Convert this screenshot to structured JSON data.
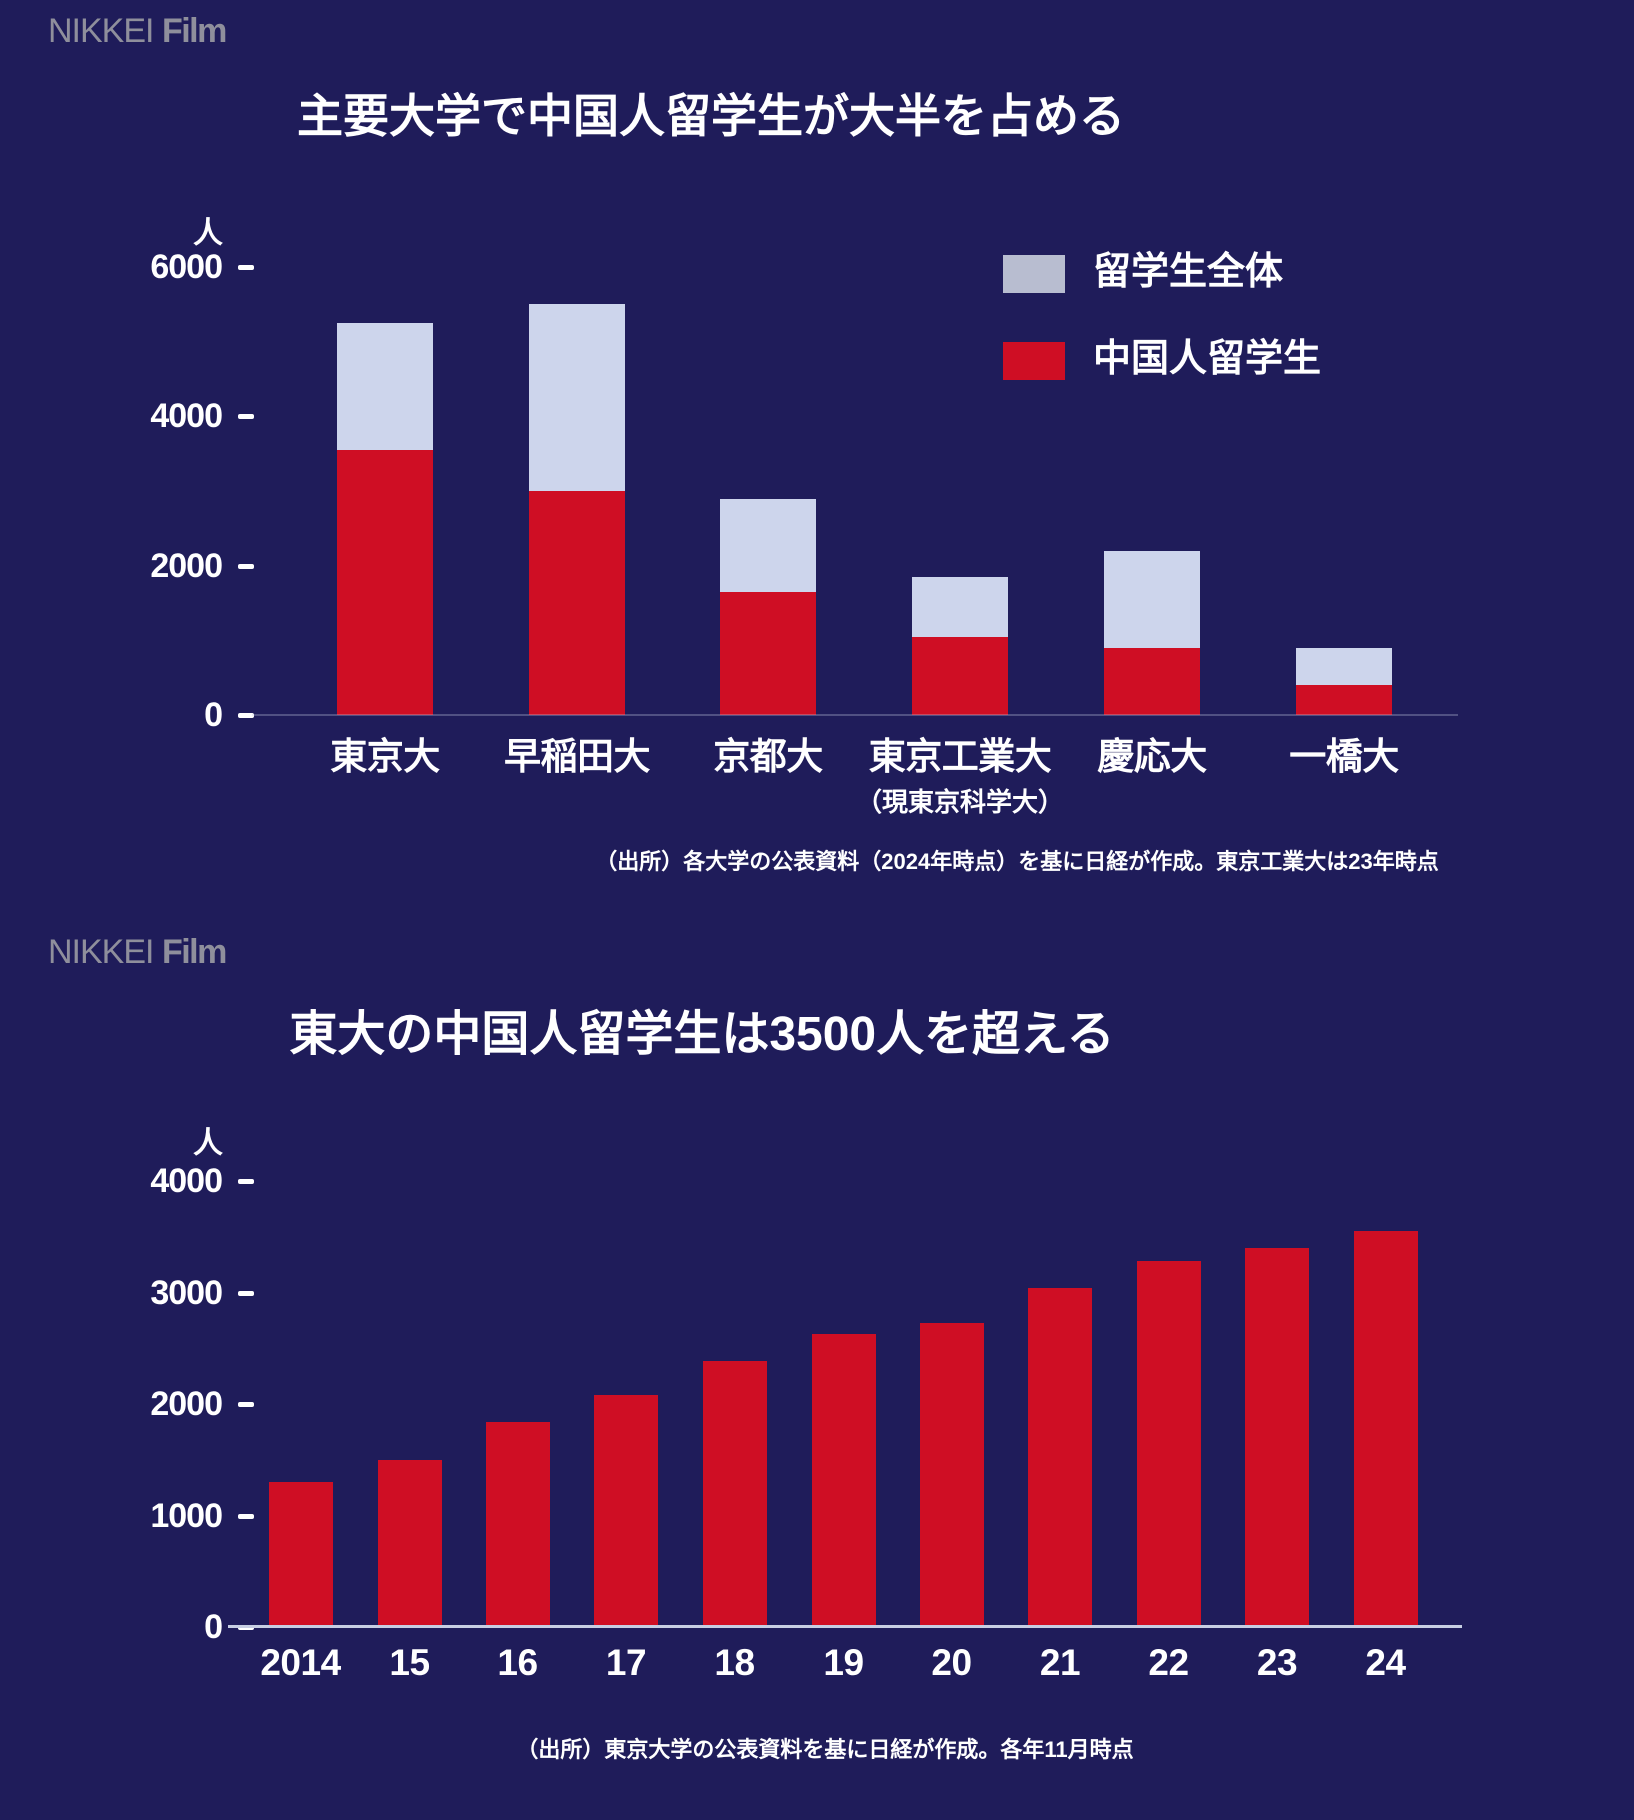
{
  "page": {
    "background": "#1f1c5a"
  },
  "brand": {
    "name_regular": "NIKKEI",
    "name_bold": "Film",
    "color": "#8f8f9c"
  },
  "colors": {
    "red": "#cf0e24",
    "light_bar": "#cdd5ec",
    "legend_total_swatch": "#b8bdd0",
    "axis_line_bottom": "#c7cee3",
    "axis_line_top": "rgba(200,206,230,0.3)",
    "text": "#ffffff"
  },
  "chart_data": [
    {
      "type": "bar",
      "title": "主要大学で中国人留学生が大半を占める",
      "unit_label": "人",
      "ylabel": "人",
      "ylim": [
        0,
        6400
      ],
      "y_ticks": [
        6000,
        4000,
        2000,
        0
      ],
      "grid": false,
      "legend_position": "upper-right",
      "legend": [
        {
          "label": "留学生全体",
          "color": "#b8bdd0"
        },
        {
          "label": "中国人留学生",
          "color": "#cf0e24"
        }
      ],
      "categories": [
        "東京大",
        "早稲田大",
        "京都大",
        "東京工業大",
        "慶応大",
        "一橋大"
      ],
      "category_sublabels": [
        "",
        "",
        "",
        "（現東京科学大）",
        "",
        ""
      ],
      "series": [
        {
          "name": "留学生全体",
          "values": [
            5250,
            5500,
            2900,
            1850,
            2200,
            900
          ]
        },
        {
          "name": "中国人留学生",
          "values": [
            3550,
            3000,
            1650,
            1050,
            900,
            400
          ]
        }
      ],
      "source": "（出所）各大学の公表資料（2024年時点）を基に日経が作成。東京工業大は23年時点"
    },
    {
      "type": "bar",
      "title": "東大の中国人留学生は3500人を超える",
      "unit_label": "人",
      "ylabel": "人",
      "ylim": [
        0,
        4000
      ],
      "y_ticks": [
        4000,
        3000,
        2000,
        1000,
        0
      ],
      "grid": false,
      "categories": [
        "2014",
        "15",
        "16",
        "17",
        "18",
        "19",
        "20",
        "21",
        "22",
        "23",
        "24"
      ],
      "values": [
        1300,
        1500,
        1840,
        2080,
        2390,
        2630,
        2730,
        3040,
        3280,
        3400,
        3550
      ],
      "source": "（出所）東京大学の公表資料を基に日経が作成。各年11月時点"
    }
  ]
}
